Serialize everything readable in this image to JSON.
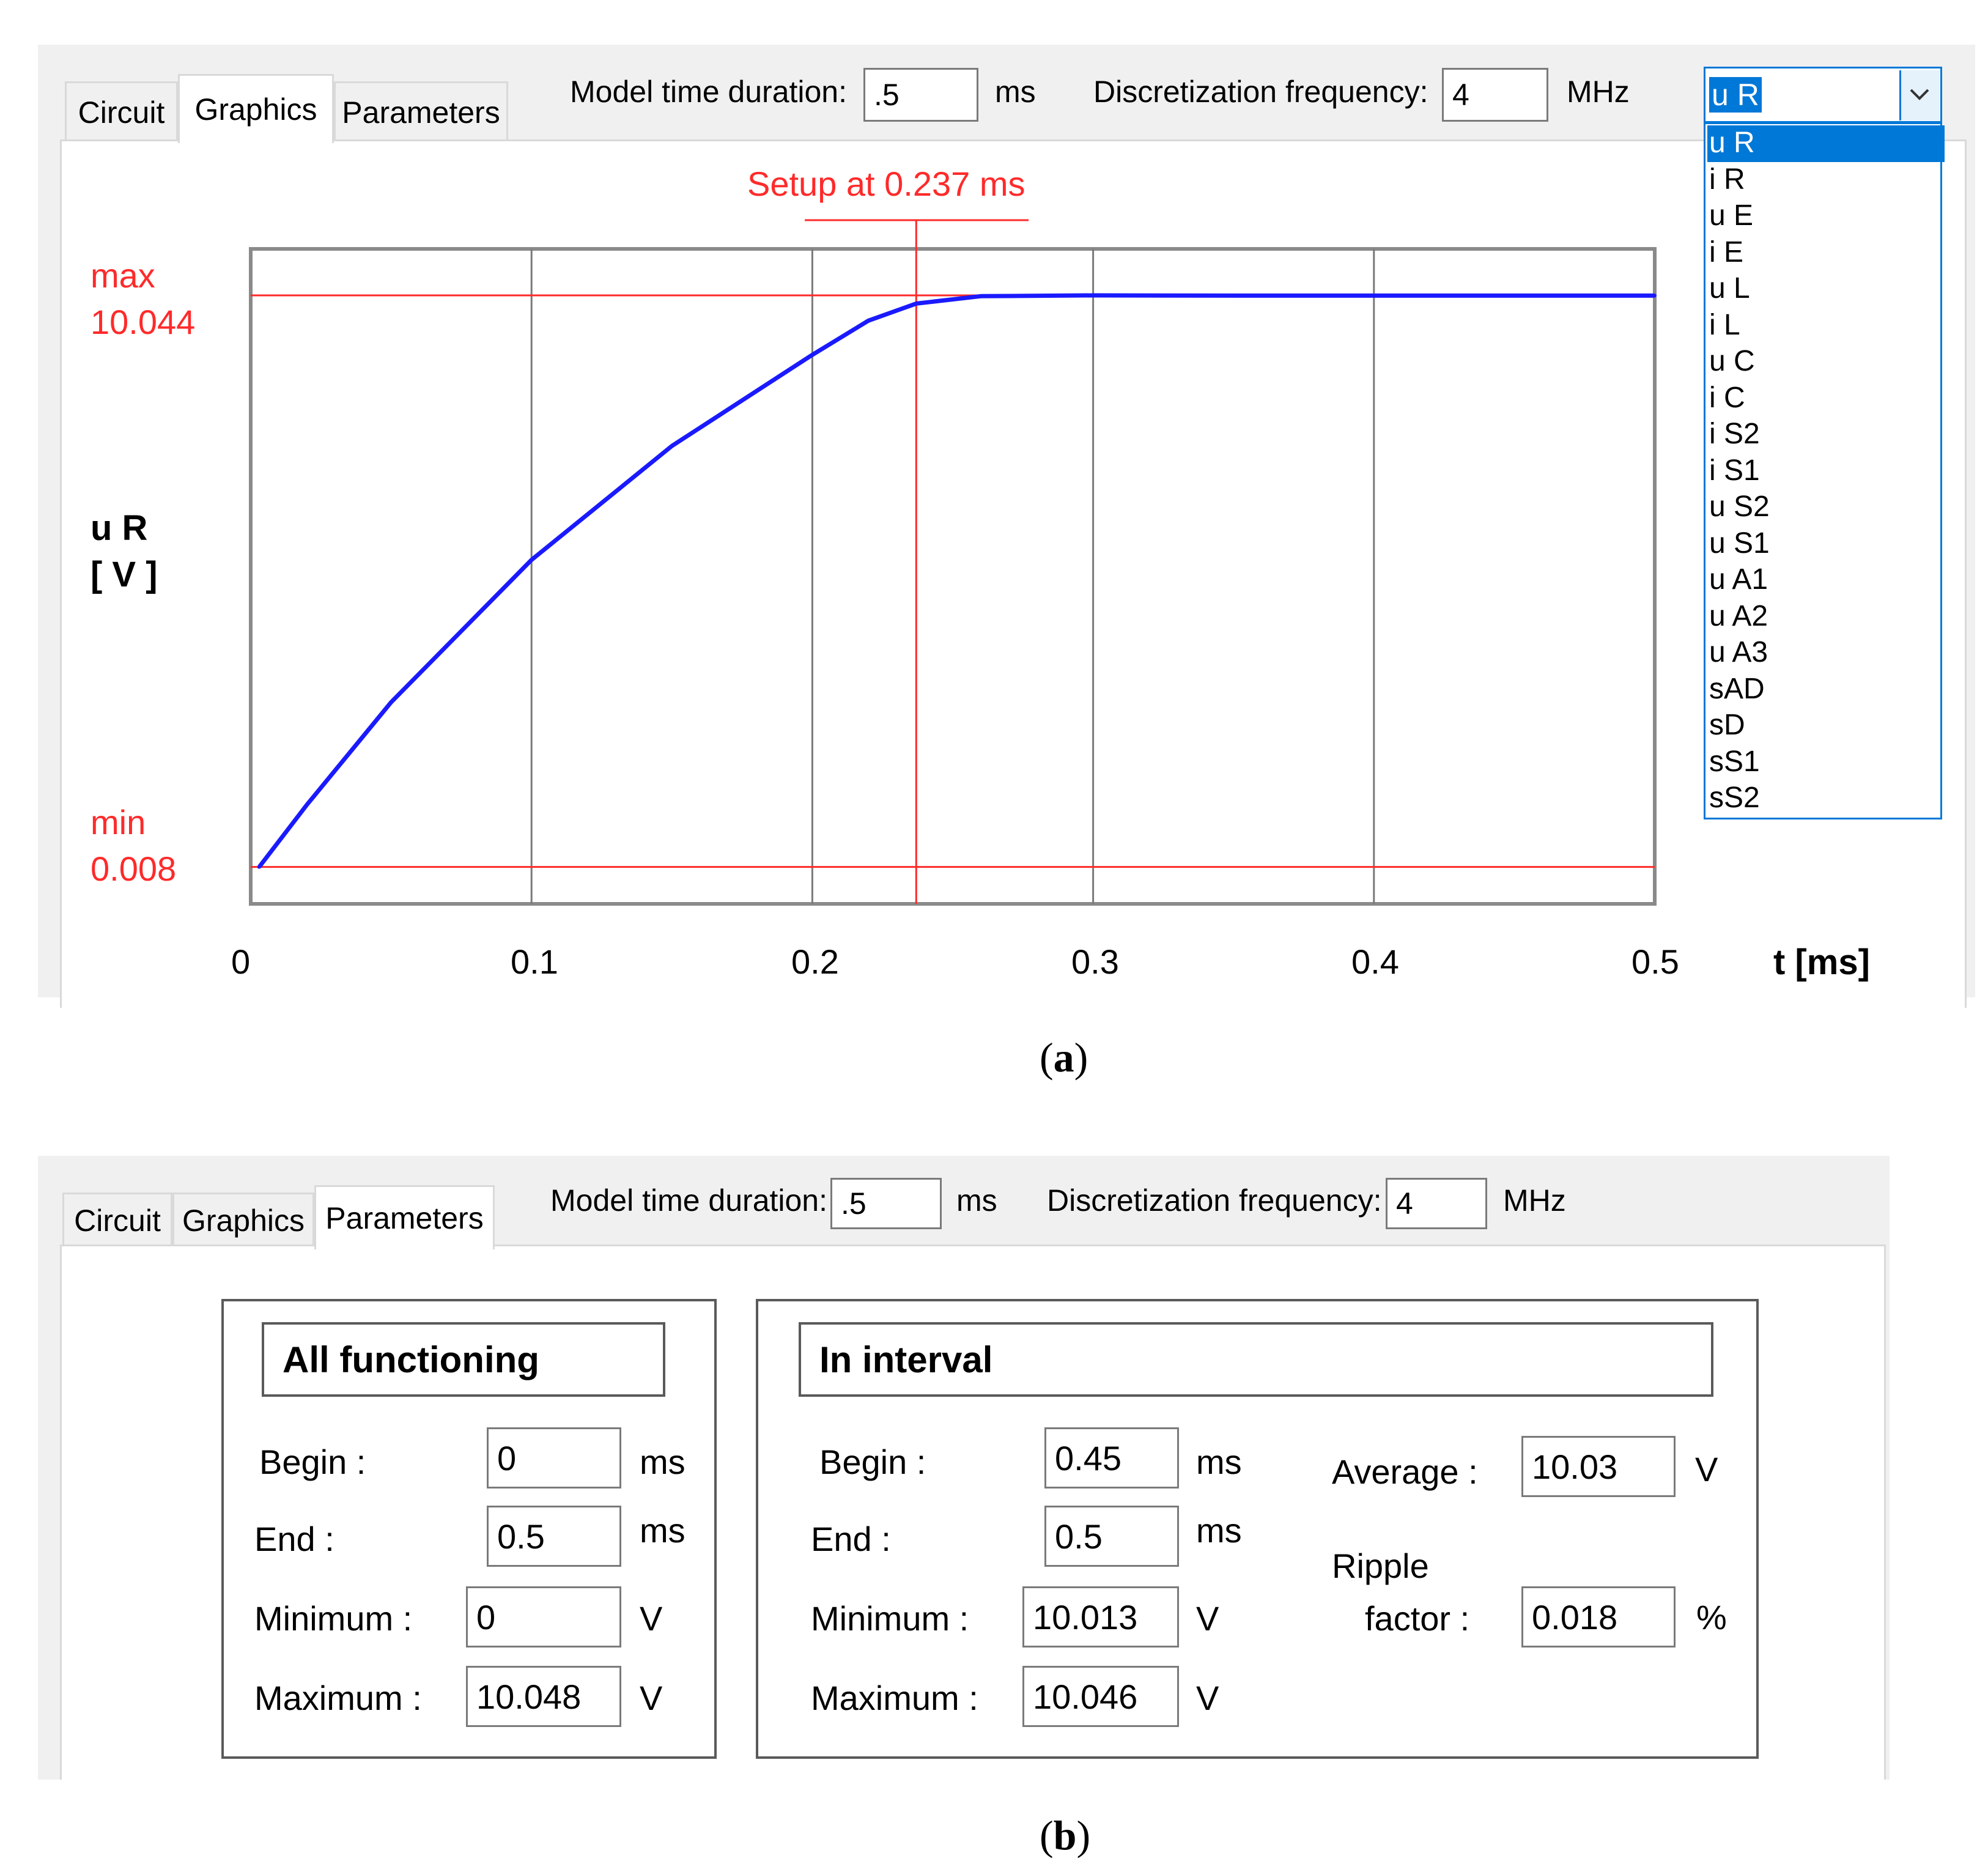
{
  "panel_a": {
    "tabs": [
      {
        "label": "Circuit",
        "active": false
      },
      {
        "label": "Graphics",
        "active": true
      },
      {
        "label": "Parameters",
        "active": false
      }
    ],
    "model_time": {
      "label": "Model time duration:",
      "value": ".5",
      "unit": "ms"
    },
    "disc_freq": {
      "label": "Discretization frequency:",
      "value": "4",
      "unit": "MHz"
    },
    "signal_select": {
      "value": "u R",
      "options": [
        "u R",
        "i R",
        "u E",
        "i E",
        "u L",
        "i L",
        "u C",
        "i C",
        "i S2",
        "i S1",
        "u S2",
        "u S1",
        "u A1",
        "u A2",
        "u A3",
        "sAD",
        "sD",
        "sS1",
        "sS2"
      ],
      "highlighted": "u R"
    },
    "chart": {
      "setup_label": "Setup at  0.237 ms",
      "max_label": "max",
      "max_value": "10.044",
      "min_label": "min",
      "min_value": "0.008",
      "ylabel_line1": "u R",
      "ylabel_line2": "[ V ]",
      "xlabel": "t [ms]",
      "xticks": [
        "0",
        "0.1",
        "0.2",
        "0.3",
        "0.4",
        "0.5"
      ],
      "colors": {
        "curve": "#1a1aff",
        "marker": "#ff2a2a",
        "grid": "#7a7a7a"
      }
    },
    "caption": "a"
  },
  "chart_data": {
    "type": "line",
    "xlabel": "t [ms]",
    "ylabel": "u R [ V ]",
    "xlim": [
      0,
      0.5
    ],
    "ylim": [
      -0.64,
      10.86
    ],
    "x_ticks": [
      0,
      0.1,
      0.2,
      0.3,
      0.4,
      0.5
    ],
    "grid": "vertical",
    "series": [
      {
        "name": "u R",
        "x": [
          0.003,
          0.02,
          0.05,
          0.1,
          0.15,
          0.2,
          0.22,
          0.237,
          0.26,
          0.3,
          0.35,
          0.4,
          0.45,
          0.5
        ],
        "y": [
          0.008,
          1.1,
          2.9,
          5.4,
          7.4,
          9.0,
          9.6,
          9.9,
          10.03,
          10.044,
          10.04,
          10.04,
          10.04,
          10.04
        ]
      }
    ],
    "annotations": {
      "setup_time_ms": 0.237,
      "max": 10.044,
      "min": 0.008
    }
  },
  "panel_b": {
    "tabs": [
      {
        "label": "Circuit",
        "active": false
      },
      {
        "label": "Graphics",
        "active": false
      },
      {
        "label": "Parameters",
        "active": true
      }
    ],
    "model_time": {
      "label": "Model time duration:",
      "value": ".5",
      "unit": "ms"
    },
    "disc_freq": {
      "label": "Discretization frequency:",
      "value": "4",
      "unit": "MHz"
    },
    "all_functioning": {
      "title": "All functioning",
      "begin": {
        "label": "Begin :",
        "value": "0",
        "unit": "ms"
      },
      "end": {
        "label": "End :",
        "value": "0.5",
        "unit": "ms"
      },
      "minimum": {
        "label": "Minimum :",
        "value": "0",
        "unit": "V"
      },
      "maximum": {
        "label": "Maximum :",
        "value": "10.048",
        "unit": "V"
      }
    },
    "in_interval": {
      "title": "In interval",
      "begin": {
        "label": "Begin :",
        "value": "0.45",
        "unit": "ms"
      },
      "end": {
        "label": "End :",
        "value": "0.5",
        "unit": "ms"
      },
      "minimum": {
        "label": "Minimum :",
        "value": "10.013",
        "unit": "V"
      },
      "maximum": {
        "label": "Maximum :",
        "value": "10.046",
        "unit": "V"
      },
      "average": {
        "label": "Average :",
        "value": "10.03",
        "unit": "V"
      },
      "ripple": {
        "label1": "Ripple",
        "label2": "factor :",
        "value": "0.018",
        "unit": "%"
      }
    },
    "caption": "b"
  }
}
